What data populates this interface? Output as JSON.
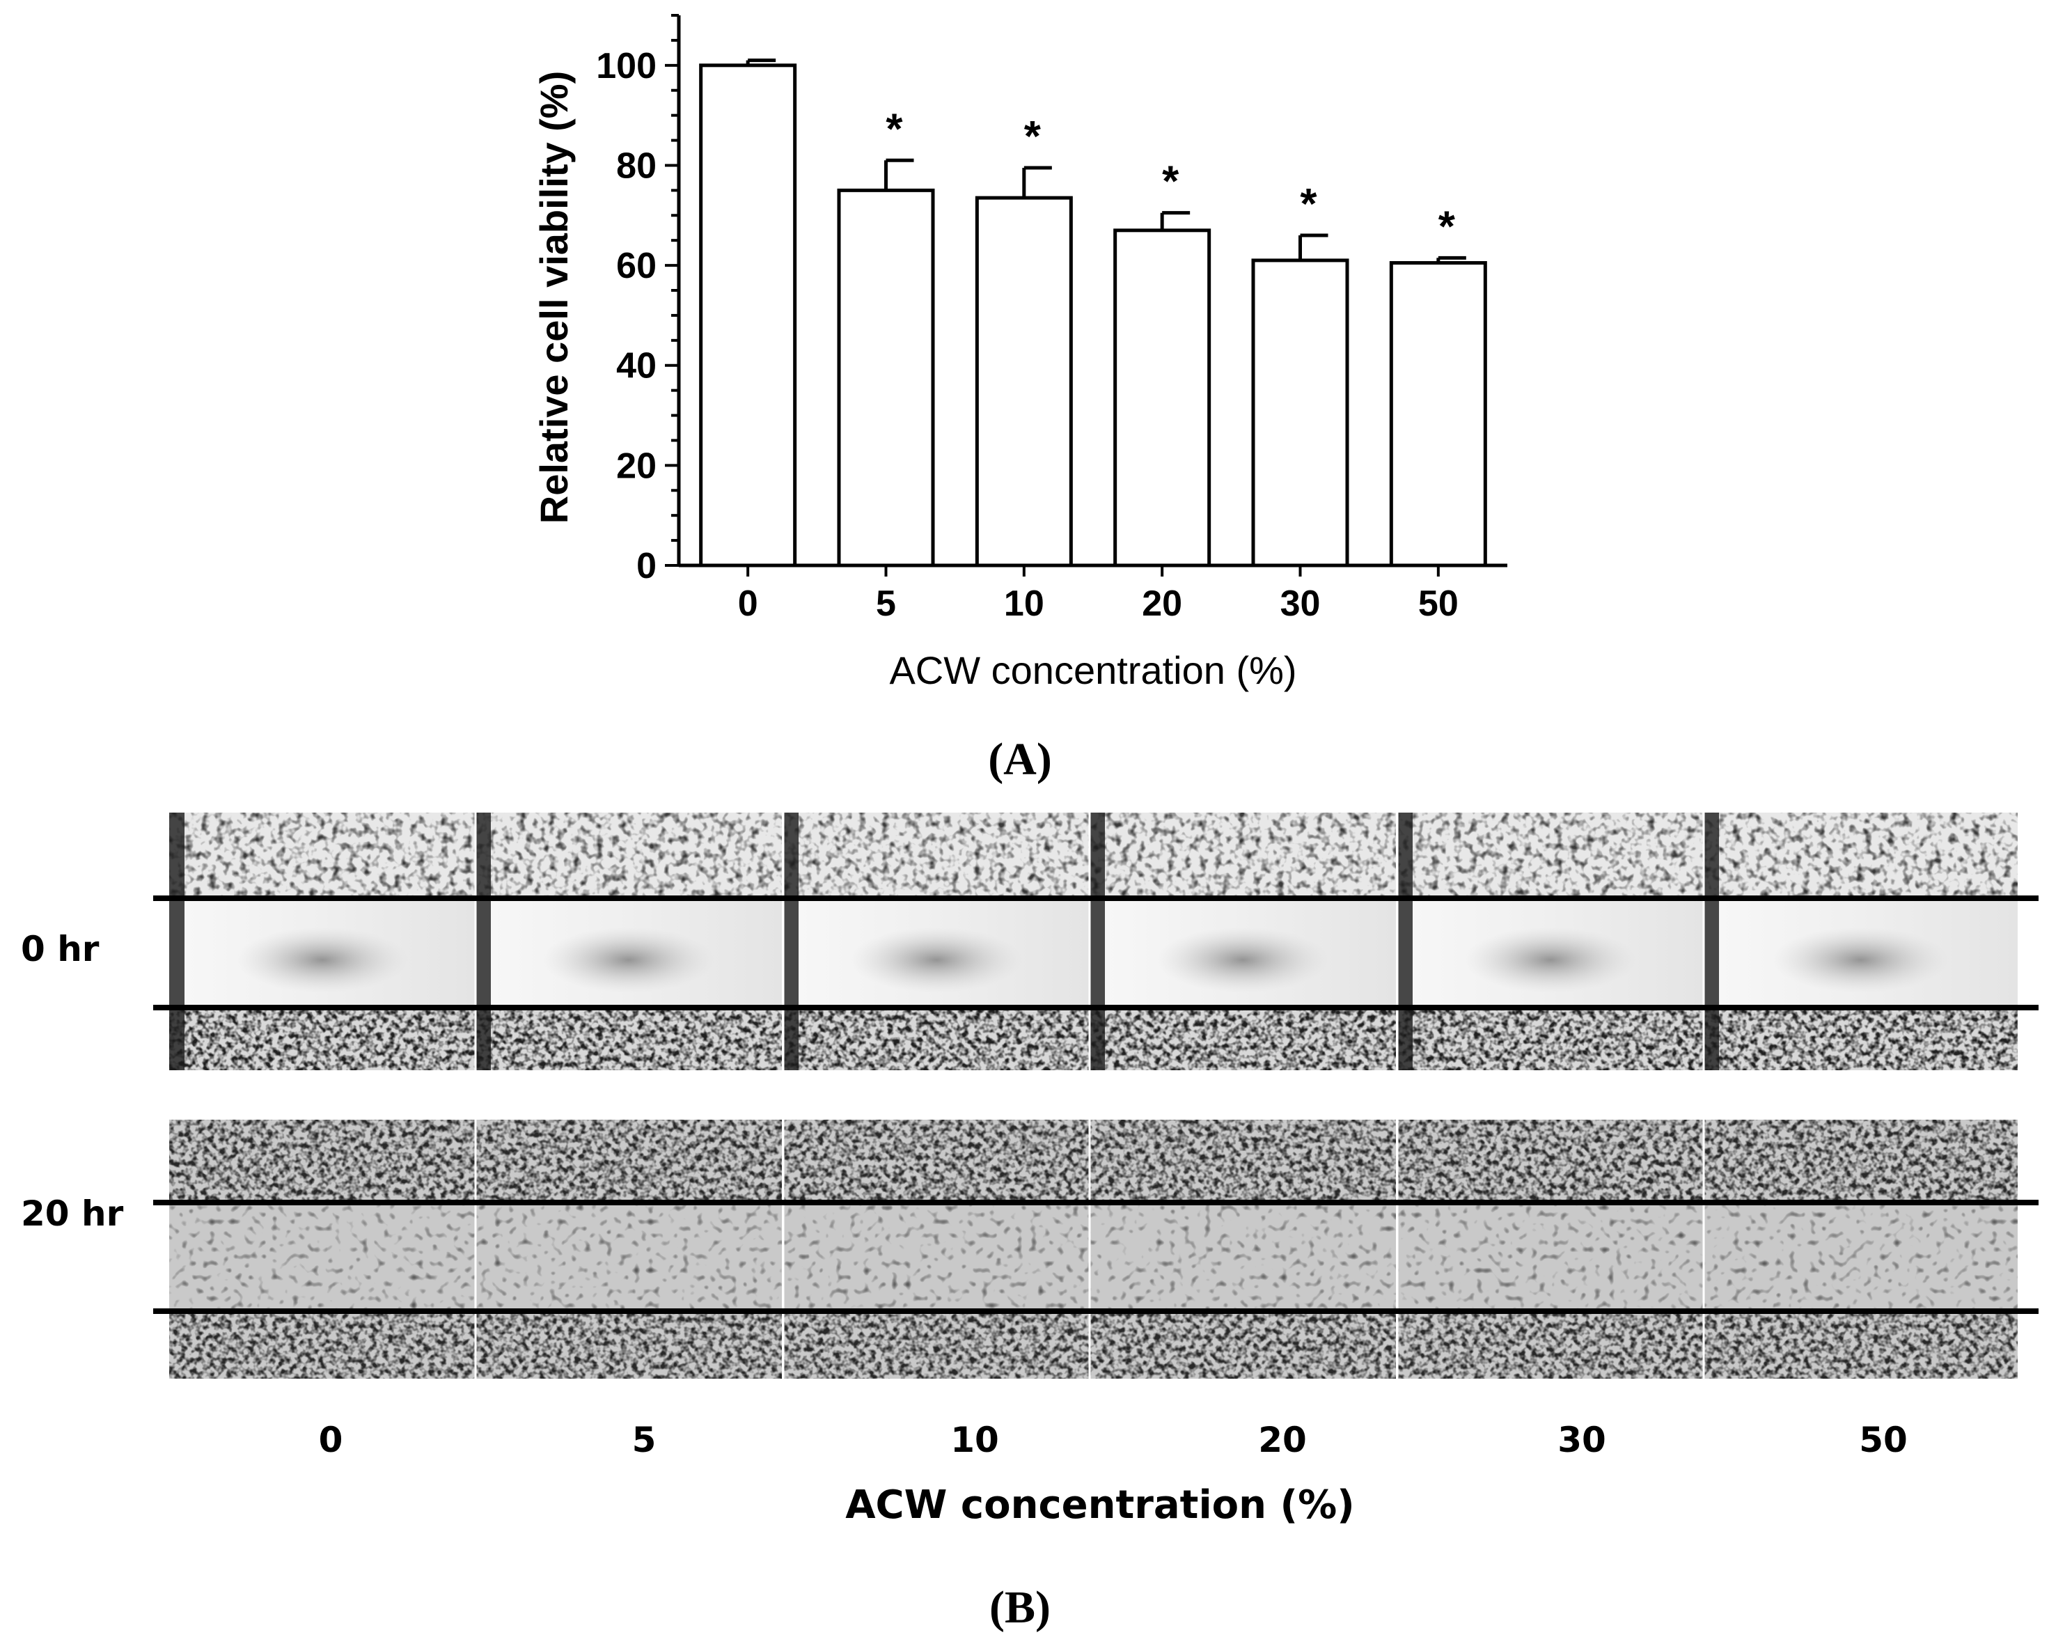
{
  "chart_data": {
    "type": "bar",
    "categories": [
      "0",
      "5",
      "10",
      "20",
      "30",
      "50"
    ],
    "values": [
      100,
      75,
      73.5,
      67,
      61,
      60.5
    ],
    "errors": [
      1,
      6,
      6,
      3.5,
      5,
      1
    ],
    "significance": [
      "",
      "*",
      "*",
      "*",
      "*",
      "*"
    ],
    "xlabel": "ACW concentration (%)",
    "ylabel": "Relative cell viability (%)",
    "ylim": [
      0,
      110
    ],
    "yticks": [
      0,
      20,
      40,
      60,
      80,
      100
    ],
    "grid": false,
    "bar_color": "#ffffff",
    "edge_color": "#000000"
  },
  "panel_a_label": "(A)",
  "panel_b": {
    "row_labels": [
      "0 hr",
      "20 hr"
    ],
    "concentrations": [
      "0",
      "5",
      "10",
      "20",
      "30",
      "50"
    ],
    "xlabel": "ACW concentration (%)",
    "label": "(B)"
  }
}
